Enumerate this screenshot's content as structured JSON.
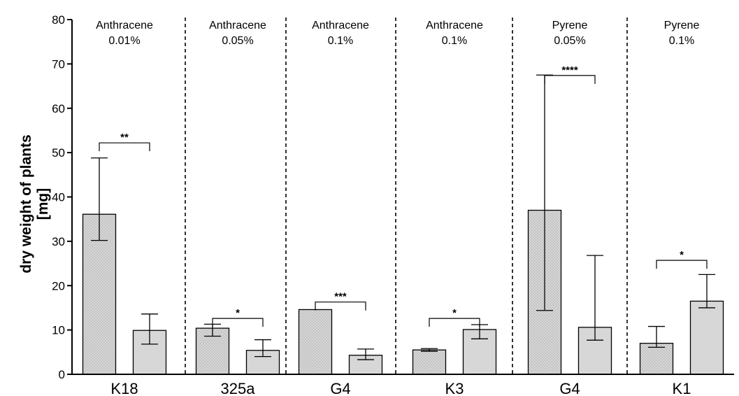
{
  "chart_data": {
    "type": "bar",
    "ylabel_lines": [
      "dry weight of plants",
      "[mg]"
    ],
    "ylim": [
      0,
      80
    ],
    "yticks": [
      0,
      10,
      20,
      30,
      40,
      50,
      60,
      70,
      80
    ],
    "grid": false,
    "groups": [
      {
        "category": "K18",
        "treatment": "Anthracene",
        "concentration": "0.01%",
        "bars": [
          {
            "pattern": "dotted",
            "value": 36.1,
            "err_low": 30.2,
            "err_high": 48.8
          },
          {
            "pattern": "solid",
            "value": 9.9,
            "err_low": 6.8,
            "err_high": 13.6
          }
        ],
        "significance": "**",
        "bracket_y": 52.2
      },
      {
        "category": "325a",
        "treatment": "Anthracene",
        "concentration": "0.05%",
        "bars": [
          {
            "pattern": "dotted",
            "value": 10.4,
            "err_low": 8.6,
            "err_high": 11.3
          },
          {
            "pattern": "solid",
            "value": 5.4,
            "err_low": 4.0,
            "err_high": 7.8
          }
        ],
        "significance": "*",
        "bracket_y": 12.6
      },
      {
        "category": "G4",
        "treatment": "Anthracene",
        "concentration": "0.1%",
        "bars": [
          {
            "pattern": "dotted",
            "value": 14.6,
            "err_low": null,
            "err_high": null
          },
          {
            "pattern": "solid",
            "value": 4.3,
            "err_low": 3.3,
            "err_high": 5.7
          }
        ],
        "significance": "***",
        "bracket_y": 16.3
      },
      {
        "category": "K3",
        "treatment": "Anthracene",
        "concentration": "0.1%",
        "bars": [
          {
            "pattern": "dotted",
            "value": 5.5,
            "err_low": 5.2,
            "err_high": 5.8
          },
          {
            "pattern": "solid",
            "value": 10.1,
            "err_low": 8.0,
            "err_high": 11.2
          }
        ],
        "significance": "*",
        "bracket_y": 12.6
      },
      {
        "category": "G4",
        "treatment": "Pyrene",
        "concentration": "0.05%",
        "bars": [
          {
            "pattern": "dotted",
            "value": 37.0,
            "err_low": 14.4,
            "err_high": 67.5
          },
          {
            "pattern": "solid",
            "value": 10.6,
            "err_low": 7.7,
            "err_high": 26.8
          }
        ],
        "significance": "****",
        "bracket_y": 67.4
      },
      {
        "category": "K1",
        "treatment": "Pyrene",
        "concentration": "0.1%",
        "bars": [
          {
            "pattern": "dotted",
            "value": 7.0,
            "err_low": 6.1,
            "err_high": 10.8
          },
          {
            "pattern": "solid",
            "value": 16.5,
            "err_low": 15.0,
            "err_high": 22.5
          }
        ],
        "significance": "*",
        "bracket_y": 25.7
      }
    ]
  },
  "colors": {
    "bar_fill": "#d7d7d7",
    "dot": "#7a7a7a",
    "axis": "#000000"
  }
}
